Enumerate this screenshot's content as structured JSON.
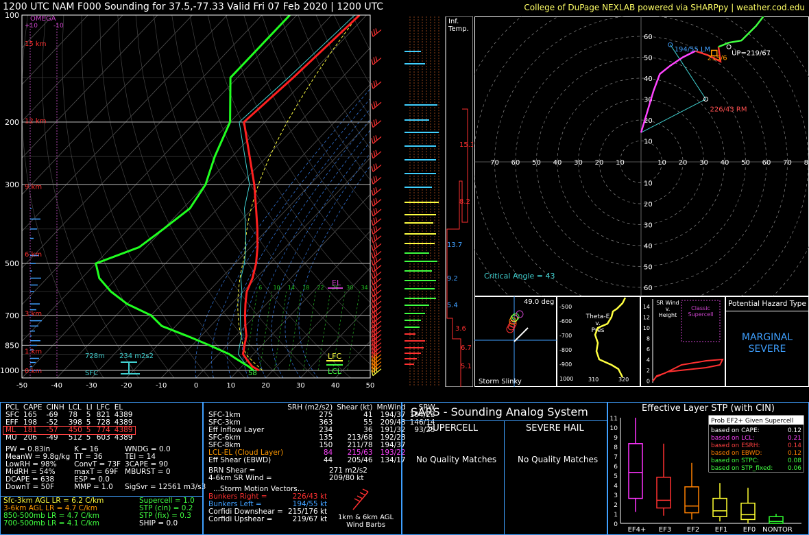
{
  "header": {
    "title": "1200 UTC NAM F000 Sounding for 37.5,-77.33  Valid  Fri 07 Feb 2020 | 1200 UTC",
    "credit": "College of DuPage NEXLAB powered via SHARPpy | weather.cod.edu"
  },
  "colors": {
    "temp": "#ff2020",
    "dewpoint": "#20ff20",
    "parcel": "#ffff40",
    "virtual": "#40d0d0",
    "grid": "#888888",
    "omega": "#cc44cc",
    "wind": "#ff3030"
  },
  "skewt": {
    "pressure_labels": [
      "100",
      "200",
      "300",
      "500",
      "700",
      "850",
      "1000"
    ],
    "temp_labels": [
      "-50",
      "-40",
      "-30",
      "-20",
      "-10",
      "0",
      "10",
      "20",
      "30",
      "40",
      "50"
    ],
    "height_labels": [
      "15 km",
      "12 km",
      "9 km",
      "6 km",
      "3 km",
      "1 km",
      "0 km"
    ],
    "omega_title": "OMEGA",
    "omega_ticks": [
      "+10",
      "-10"
    ],
    "labels": {
      "sfc": "SFC",
      "el": "EL",
      "lfc": "LFC",
      "lcl": "LCL",
      "dew_sfc": "58",
      "eff_base": "728m",
      "eff_srh": "234 m2s2"
    },
    "mixing_ratios": [
      "6",
      "10",
      "14",
      "18",
      "22",
      "26",
      "30",
      "34"
    ],
    "temperature": {
      "p": [
        1000,
        975,
        950,
        925,
        900,
        850,
        800,
        750,
        700,
        650,
        600,
        550,
        500,
        450,
        400,
        350,
        300,
        250,
        200,
        150,
        100
      ],
      "t": [
        16,
        13,
        11,
        9,
        7,
        5,
        3,
        0,
        -3,
        -6,
        -9,
        -11,
        -14,
        -18,
        -23,
        -29,
        -36,
        -45,
        -56,
        -54,
        -52
      ]
    },
    "dewpoint": {
      "p": [
        1000,
        975,
        950,
        925,
        900,
        850,
        800,
        750,
        700,
        650,
        600,
        550,
        500,
        450,
        400,
        350,
        300,
        250,
        200,
        150,
        100
      ],
      "td": [
        14.4,
        12,
        9,
        6,
        3,
        -5,
        -14,
        -24,
        -30,
        -40,
        -48,
        -55,
        -60,
        -52,
        -50,
        -48,
        -50,
        -55,
        -60,
        -72,
        -72
      ]
    }
  },
  "hodograph": {
    "critical_angle": "Critical Angle = 43",
    "labels": {
      "lm": "194/55 LM",
      "rm": "226/43 RM",
      "up": "UP=219/67",
      "mean": "215/6"
    },
    "ring_labels_y": [
      "60",
      "50",
      "40",
      "30",
      "20",
      "10"
    ],
    "ring_labels_x": [
      "70",
      "60",
      "50",
      "40",
      "30",
      "20",
      "10",
      "10",
      "20",
      "30",
      "40",
      "50",
      "60",
      "70",
      "80"
    ],
    "ring_labels_y_neg": [
      "10",
      "20",
      "30",
      "40",
      "50",
      "60"
    ]
  },
  "inflow": {
    "title": "Inf.\nTemp.",
    "values": [
      "15.3",
      "8.2",
      "13.7",
      "9.2",
      "5.4",
      "3.6",
      "6.7",
      "5.1"
    ]
  },
  "slinky": {
    "angle": "49.0 deg",
    "label": "Storm Slinky"
  },
  "thetae": {
    "title": "Theta-E\nv.\nPres",
    "xticks": [
      "310",
      "320"
    ],
    "yticks": [
      "-500",
      "-600",
      "-700",
      "-800",
      "-900",
      "1000"
    ]
  },
  "wind_height": {
    "title": "SR Wind\nv.\nHeight",
    "yticks": [
      "14",
      "12",
      "10",
      "8",
      "6",
      "4",
      "2",
      "0"
    ],
    "supercell": "Classic\nSupercell"
  },
  "hazard": {
    "title": "Potential Hazard Type",
    "value": "MARGINAL\nSEVERE"
  },
  "parcels": {
    "headers": [
      "PCL",
      "CAPE",
      "CINH",
      "LCL",
      "LI",
      "LFC",
      "EL"
    ],
    "rows": [
      [
        "SFC",
        "165",
        "-69",
        "78",
        "5",
        "821",
        "4389"
      ],
      [
        "EFF",
        "198",
        "-52",
        "398",
        "5",
        "728",
        "4389"
      ],
      [
        "ML",
        "181",
        "-57",
        "450",
        "5",
        "774",
        "4389"
      ],
      [
        "MU",
        "206",
        "-49",
        "512",
        "5",
        "603",
        "4389"
      ]
    ]
  },
  "indices": [
    [
      "PW = 0.83in",
      "K = 16",
      "WNDG = 0.0"
    ],
    [
      "MeanW = 9.8g/kg",
      "TT = 36",
      "TEI = 14"
    ],
    [
      "LowRH = 98%",
      "ConvT = 73F",
      "3CAPE = 90"
    ],
    [
      "MidRH = 54%",
      "maxT = 69F",
      "MBURST = 0"
    ],
    [
      "DCAPE = 638",
      "ESP = 0.0",
      ""
    ],
    [
      "DownT = 50F",
      "MMP = 1.0",
      "SigSvr = 12561 m3/s3"
    ]
  ],
  "lapse": [
    "Sfc-3km AGL LR = 6.2 C/km",
    "3-6km AGL LR = 4.7 C/km",
    "850-500mb LR = 4.7 C/km",
    "700-500mb LR = 4.1 C/km"
  ],
  "composite": [
    "Supercell = 1.0",
    "STP (cin) = 0.2",
    "STP (fix) = 0.3",
    "SHIP = 0.0"
  ],
  "kinematics": {
    "headers": [
      "",
      "SRH (m2/s2)",
      "Shear (kt)",
      "MnWind",
      "SRW"
    ],
    "rows": [
      [
        "SFC-1km",
        "275",
        "41",
        "194/37",
        "104/23"
      ],
      [
        "SFC-3km",
        "363",
        "55",
        "209/48",
        "146/14"
      ],
      [
        "Eff Inflow Layer",
        "234",
        "36",
        "191/32",
        "93/25"
      ],
      [
        "",
        "",
        "",
        "",
        ""
      ],
      [
        "SFC-6km",
        "135",
        "213/68",
        "192/28",
        ""
      ],
      [
        "SFC-8km",
        "150",
        "211/78",
        "194/37",
        ""
      ],
      [
        "LCL-EL (Cloud Layer)",
        "84",
        "215/63",
        "193/22",
        ""
      ],
      [
        "Eff Shear (EBWD)",
        "44",
        "205/46",
        "134/17",
        ""
      ]
    ],
    "brn": [
      "BRN Shear =",
      "271 m2/s2"
    ],
    "sr46": [
      "4-6km SR Wind =",
      "209/80 kt"
    ],
    "vectors_title": "...Storm Motion Vectors...",
    "vectors": [
      [
        "Bunkers Right =",
        "226/43 kt"
      ],
      [
        "Bunkers Left =",
        "194/55 kt"
      ],
      [
        "Corfidi Downshear =",
        "215/176 kt"
      ],
      [
        "Corfidi Upshear =",
        "219/67 kt"
      ]
    ],
    "barb_label": "1km & 6km AGL\nWind Barbs"
  },
  "sars": {
    "title": "SARS - Sounding Analog System",
    "supercell": "SUPERCELL",
    "hail": "SEVERE HAIL",
    "sup_result": "No Quality Matches",
    "hail_result": "No Quality Matches"
  },
  "stp": {
    "title": "Effective Layer STP (with CIN)",
    "legend_title": "Prob EF2+ Given Supercell",
    "legend": [
      [
        "based on CAPE:",
        "0.12",
        "#ffffff"
      ],
      [
        "based on LCL:",
        "0.21",
        "#ff44ff"
      ],
      [
        "based on ESRH:",
        "0.14",
        "#ff4040"
      ],
      [
        "based on EBWD:",
        "0.12",
        "#ff8000"
      ],
      [
        "based on STPC:",
        "0.08",
        "#40ff40"
      ],
      [
        "based on STP_fixed:",
        "0.06",
        "#40ff40"
      ]
    ],
    "yticks": [
      "11",
      "10",
      "9",
      "8",
      "7",
      "6",
      "5",
      "4",
      "3",
      "2",
      "1",
      "0"
    ]
  },
  "chart_data": {
    "type": "box",
    "title": "Effective Layer STP (with CIN)",
    "categories": [
      "EF4+",
      "EF3",
      "EF2",
      "EF1",
      "EF0",
      "NONTOR"
    ],
    "ylim": [
      0,
      11
    ],
    "boxes": [
      {
        "cat": "EF4+",
        "whisker_low": 1.2,
        "q1": 2.6,
        "median": 5.3,
        "q3": 8.3,
        "whisker_high": 11,
        "color": "#ff33ff"
      },
      {
        "cat": "EF3",
        "whisker_low": 0.8,
        "q1": 1.6,
        "median": 2.4,
        "q3": 4.8,
        "whisker_high": 8.3,
        "color": "#ff3030"
      },
      {
        "cat": "EF2",
        "whisker_low": 0.4,
        "q1": 1.1,
        "median": 1.8,
        "q3": 3.8,
        "whisker_high": 6.3,
        "color": "#ff8000"
      },
      {
        "cat": "EF1",
        "whisker_low": 0.2,
        "q1": 0.7,
        "median": 1.3,
        "q3": 2.6,
        "whisker_high": 4.2,
        "color": "#ffff30"
      },
      {
        "cat": "EF0",
        "whisker_low": 0.0,
        "q1": 0.4,
        "median": 0.9,
        "q3": 2.1,
        "whisker_high": 3.7,
        "color": "#ffff30"
      },
      {
        "cat": "NONTOR",
        "whisker_low": 0.0,
        "q1": 0.0,
        "median": 0.2,
        "q3": 0.7,
        "whisker_high": 1.0,
        "color": "#30ff30"
      }
    ]
  }
}
